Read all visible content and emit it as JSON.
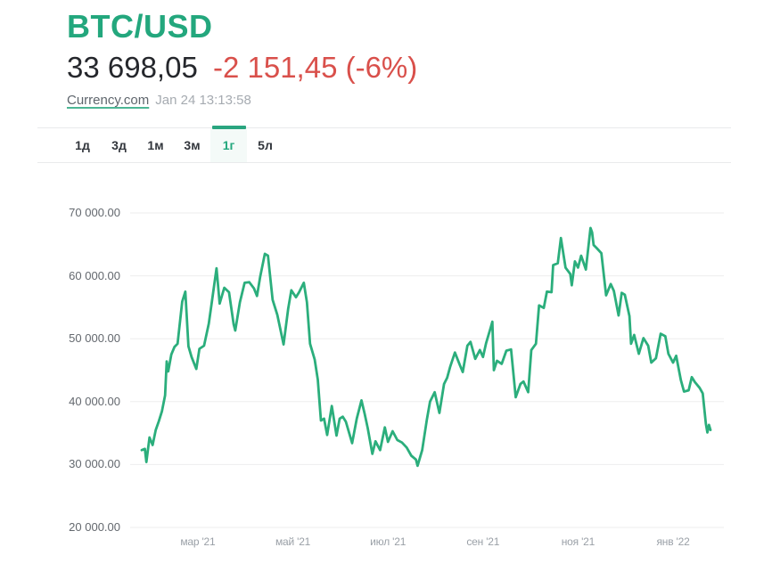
{
  "header": {
    "symbol": "BTC/USD",
    "price": "33 698,05",
    "change": "-2 151,45 (-6%)",
    "source_link": "Currency.com",
    "timestamp": "Jan 24 13:13:58"
  },
  "colors": {
    "brand_green": "#23a77d",
    "line_green": "#2bae7c",
    "change_red": "#d9504b",
    "gridline": "#ededee",
    "divider": "#e9eaeb",
    "y_label": "#63686e",
    "x_label": "#9aa0a7"
  },
  "tabs": [
    {
      "label": "1д",
      "active": false
    },
    {
      "label": "3д",
      "active": false
    },
    {
      "label": "1м",
      "active": false
    },
    {
      "label": "3м",
      "active": false
    },
    {
      "label": "1г",
      "active": true
    },
    {
      "label": "5л",
      "active": false
    }
  ],
  "chart_data": {
    "type": "line",
    "title": "BTC/USD — 1 year",
    "legend": "none",
    "grid": "horizontal",
    "ylim": [
      20000,
      70000
    ],
    "xlim_days": [
      0,
      365
    ],
    "line_color": "#2bae7c",
    "y_ticks": [
      {
        "label": "70 000.00",
        "value": 70000
      },
      {
        "label": "60 000.00",
        "value": 60000
      },
      {
        "label": "50 000.00",
        "value": 50000
      },
      {
        "label": "40 000.00",
        "value": 40000
      },
      {
        "label": "30 000.00",
        "value": 30000
      },
      {
        "label": "20 000.00",
        "value": 20000
      }
    ],
    "x_ticks": [
      {
        "label": "мар '21",
        "day": 36
      },
      {
        "label": "май '21",
        "day": 97
      },
      {
        "label": "июл '21",
        "day": 158
      },
      {
        "label": "сен '21",
        "day": 219
      },
      {
        "label": "ноя '21",
        "day": 280
      },
      {
        "label": "янв '22",
        "day": 341
      }
    ],
    "series": [
      {
        "name": "BTC/USD",
        "points": [
          [
            0,
            32300
          ],
          [
            2,
            32500
          ],
          [
            3,
            30400
          ],
          [
            5,
            34300
          ],
          [
            7,
            33100
          ],
          [
            9,
            35500
          ],
          [
            11,
            36900
          ],
          [
            13,
            38500
          ],
          [
            15,
            41000
          ],
          [
            16,
            46400
          ],
          [
            17,
            44800
          ],
          [
            19,
            47500
          ],
          [
            21,
            48700
          ],
          [
            23,
            49200
          ],
          [
            26,
            55900
          ],
          [
            28,
            57500
          ],
          [
            30,
            48800
          ],
          [
            32,
            47100
          ],
          [
            35,
            45200
          ],
          [
            37,
            48400
          ],
          [
            40,
            48900
          ],
          [
            43,
            52400
          ],
          [
            45,
            55900
          ],
          [
            48,
            61200
          ],
          [
            50,
            55600
          ],
          [
            53,
            58100
          ],
          [
            56,
            57400
          ],
          [
            59,
            52300
          ],
          [
            60,
            51300
          ],
          [
            63,
            55800
          ],
          [
            66,
            58900
          ],
          [
            69,
            59000
          ],
          [
            72,
            58000
          ],
          [
            74,
            56800
          ],
          [
            76,
            59800
          ],
          [
            79,
            63500
          ],
          [
            81,
            63200
          ],
          [
            84,
            56200
          ],
          [
            87,
            53800
          ],
          [
            91,
            49100
          ],
          [
            94,
            54800
          ],
          [
            96,
            57700
          ],
          [
            99,
            56600
          ],
          [
            101,
            57400
          ],
          [
            104,
            58900
          ],
          [
            106,
            55800
          ],
          [
            108,
            49200
          ],
          [
            111,
            46700
          ],
          [
            113,
            43500
          ],
          [
            115,
            37000
          ],
          [
            117,
            37300
          ],
          [
            119,
            34700
          ],
          [
            122,
            39300
          ],
          [
            125,
            34600
          ],
          [
            127,
            37300
          ],
          [
            129,
            37600
          ],
          [
            131,
            36800
          ],
          [
            135,
            33400
          ],
          [
            138,
            37300
          ],
          [
            141,
            40200
          ],
          [
            143,
            38100
          ],
          [
            145,
            35800
          ],
          [
            148,
            31700
          ],
          [
            150,
            33700
          ],
          [
            153,
            32300
          ],
          [
            156,
            35900
          ],
          [
            158,
            33600
          ],
          [
            161,
            35300
          ],
          [
            164,
            33900
          ],
          [
            167,
            33500
          ],
          [
            170,
            32700
          ],
          [
            173,
            31400
          ],
          [
            176,
            30800
          ],
          [
            177,
            29800
          ],
          [
            180,
            32300
          ],
          [
            183,
            37200
          ],
          [
            185,
            40000
          ],
          [
            188,
            41500
          ],
          [
            191,
            38200
          ],
          [
            194,
            42800
          ],
          [
            196,
            43800
          ],
          [
            198,
            45600
          ],
          [
            201,
            47800
          ],
          [
            204,
            45900
          ],
          [
            206,
            44700
          ],
          [
            209,
            48900
          ],
          [
            211,
            49500
          ],
          [
            214,
            46800
          ],
          [
            217,
            48200
          ],
          [
            219,
            47100
          ],
          [
            221,
            49300
          ],
          [
            224,
            51800
          ],
          [
            225,
            52700
          ],
          [
            226,
            45000
          ],
          [
            228,
            46500
          ],
          [
            231,
            46000
          ],
          [
            234,
            48100
          ],
          [
            237,
            48300
          ],
          [
            240,
            40700
          ],
          [
            243,
            42800
          ],
          [
            245,
            43200
          ],
          [
            248,
            41500
          ],
          [
            250,
            48200
          ],
          [
            253,
            49200
          ],
          [
            255,
            55300
          ],
          [
            258,
            54900
          ],
          [
            260,
            57500
          ],
          [
            263,
            57400
          ],
          [
            264,
            61700
          ],
          [
            267,
            62000
          ],
          [
            269,
            66000
          ],
          [
            272,
            61300
          ],
          [
            275,
            60300
          ],
          [
            276,
            58500
          ],
          [
            278,
            62300
          ],
          [
            280,
            61300
          ],
          [
            282,
            63200
          ],
          [
            285,
            61000
          ],
          [
            288,
            67600
          ],
          [
            289,
            66900
          ],
          [
            290,
            64900
          ],
          [
            292,
            64400
          ],
          [
            295,
            63600
          ],
          [
            298,
            56900
          ],
          [
            301,
            58700
          ],
          [
            303,
            57600
          ],
          [
            306,
            53700
          ],
          [
            308,
            57300
          ],
          [
            310,
            57000
          ],
          [
            313,
            53600
          ],
          [
            314,
            49200
          ],
          [
            316,
            50600
          ],
          [
            319,
            47600
          ],
          [
            322,
            50100
          ],
          [
            325,
            48900
          ],
          [
            327,
            46200
          ],
          [
            330,
            46900
          ],
          [
            333,
            50800
          ],
          [
            336,
            50400
          ],
          [
            338,
            47600
          ],
          [
            341,
            46200
          ],
          [
            343,
            47300
          ],
          [
            346,
            43400
          ],
          [
            348,
            41600
          ],
          [
            351,
            41800
          ],
          [
            353,
            43900
          ],
          [
            355,
            43100
          ],
          [
            358,
            42200
          ],
          [
            360,
            41300
          ],
          [
            362,
            36500
          ],
          [
            363,
            35100
          ],
          [
            364,
            36300
          ],
          [
            365,
            35500
          ]
        ]
      }
    ]
  }
}
